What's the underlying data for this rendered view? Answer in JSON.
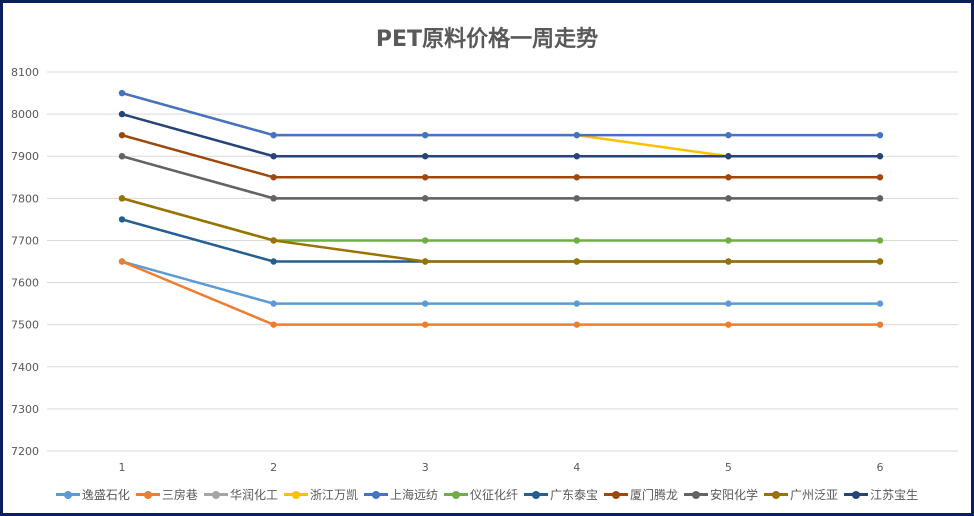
{
  "chart_data": {
    "type": "line",
    "title": "PET原料价格一周走势",
    "xlabel": "",
    "ylabel": "",
    "x": [
      1,
      2,
      3,
      4,
      5,
      6
    ],
    "ylim": [
      7200,
      8100
    ],
    "yticks": [
      7200,
      7300,
      7400,
      7500,
      7600,
      7700,
      7800,
      7900,
      8000,
      8100
    ],
    "grid": true,
    "legend": "bottom",
    "series": [
      {
        "name": "逸盛石化",
        "color": "#5b9bd5",
        "values": [
          7650,
          7550,
          7550,
          7550,
          7550,
          7550
        ]
      },
      {
        "name": "三房巷",
        "color": "#ed7d31",
        "values": [
          7650,
          7500,
          7500,
          7500,
          7500,
          7500
        ]
      },
      {
        "name": "华润化工",
        "color": "#a5a5a5",
        "values": [
          7900,
          7800,
          7800,
          7800,
          7800,
          7800
        ]
      },
      {
        "name": "浙江万凯",
        "color": "#ffc000",
        "values": [
          8050,
          7950,
          7950,
          7950,
          7900,
          7900
        ]
      },
      {
        "name": "上海远纺",
        "color": "#4472c4",
        "values": [
          8050,
          7950,
          7950,
          7950,
          7950,
          7950
        ]
      },
      {
        "name": "仪征化纤",
        "color": "#70ad47",
        "values": [
          7800,
          7700,
          7700,
          7700,
          7700,
          7700
        ]
      },
      {
        "name": "广东泰宝",
        "color": "#255e91",
        "values": [
          7750,
          7650,
          7650,
          7650,
          7650,
          7650
        ]
      },
      {
        "name": "厦门腾龙",
        "color": "#9e480e",
        "values": [
          7950,
          7850,
          7850,
          7850,
          7850,
          7850
        ]
      },
      {
        "name": "安阳化学",
        "color": "#636363",
        "values": [
          7900,
          7800,
          7800,
          7800,
          7800,
          7800
        ]
      },
      {
        "name": "广州泛亚",
        "color": "#997300",
        "values": [
          7800,
          7700,
          7650,
          7650,
          7650,
          7650
        ]
      },
      {
        "name": "江苏宝生",
        "color": "#264478",
        "values": [
          8000,
          7900,
          7900,
          7900,
          7900,
          7900
        ]
      }
    ]
  }
}
